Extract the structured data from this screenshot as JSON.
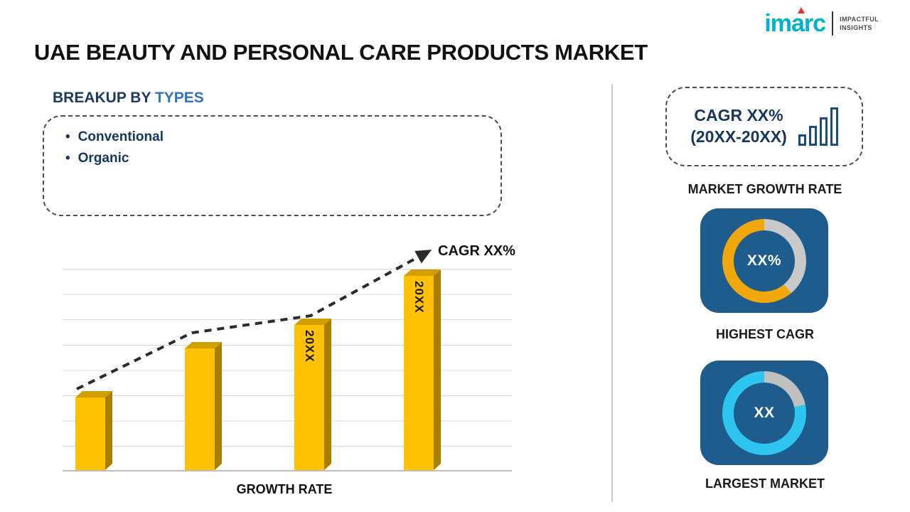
{
  "logo": {
    "brand": "imarc",
    "tagline1": "IMPACTFUL",
    "tagline2": "INSIGHTS"
  },
  "title": "UAE BEAUTY AND PERSONAL CARE PRODUCTS MARKET",
  "breakup": {
    "prefix": "BREAKUP BY ",
    "highlight": "TYPES",
    "items": [
      "Conventional",
      "Organic"
    ]
  },
  "right_panel": {
    "cagr_line1": "CAGR XX%",
    "cagr_line2": "(20XX-20XX)",
    "market_growth_label": "MARKET GROWTH RATE",
    "highest_cagr": {
      "value": "XX%",
      "label": "HIGHEST CAGR"
    },
    "largest_market": {
      "value": "XX",
      "label": "LARGEST MARKET"
    }
  },
  "chart_data": {
    "type": "bar",
    "categories": [
      "",
      "",
      "20XX",
      "20XX"
    ],
    "values": [
      25,
      42,
      50,
      67
    ],
    "ylim": [
      0,
      70
    ],
    "title": "",
    "xlabel": "GROWTH RATE",
    "ylabel": "",
    "annotation": "CAGR XX%",
    "trend_line": "dashed ascending arrow across bar tops",
    "grid": true,
    "legend": "none",
    "bar_color": "#FFC103"
  },
  "colors": {
    "accent_navy": "#17365d",
    "highlight_blue": "#2e75b6",
    "bar_gold": "#FFC103",
    "card_blue": "#1d5c8d",
    "donut_track": "#c9c9c9",
    "donut_yellow": "#f2a70a",
    "donut_cyan": "#2ec6f0",
    "brand_teal": "#00b2cb",
    "brand_red": "#e63329"
  }
}
